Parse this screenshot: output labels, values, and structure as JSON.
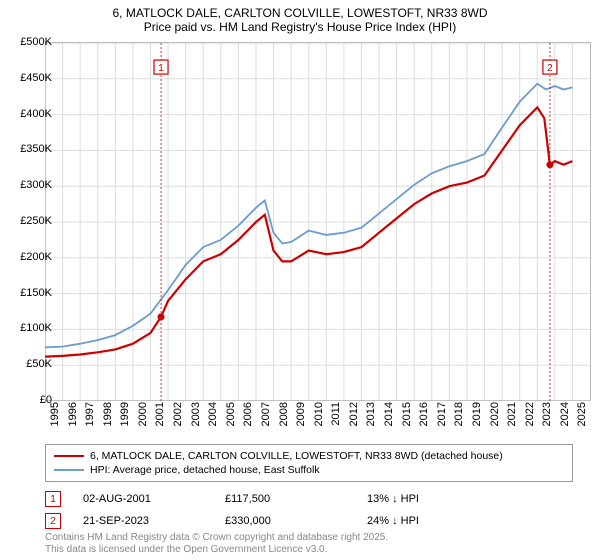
{
  "title_line1": "6, MATLOCK DALE, CARLTON COLVILLE, LOWESTOFT, NR33 8WD",
  "title_line2": "Price paid vs. HM Land Registry's House Price Index (HPI)",
  "chart": {
    "type": "line",
    "background_color": "#ffffff",
    "grid_color": "#dddddd",
    "x_start": 1995,
    "x_end": 2026,
    "x_ticks": [
      1995,
      1996,
      1997,
      1998,
      1999,
      2000,
      2001,
      2002,
      2003,
      2004,
      2005,
      2006,
      2007,
      2008,
      2009,
      2010,
      2011,
      2012,
      2013,
      2014,
      2015,
      2016,
      2017,
      2018,
      2019,
      2020,
      2021,
      2022,
      2023,
      2024,
      2025
    ],
    "y_min": 0,
    "y_max": 500000,
    "y_ticks": [
      0,
      50000,
      100000,
      150000,
      200000,
      250000,
      300000,
      350000,
      400000,
      450000,
      500000
    ],
    "y_labels": [
      "£0",
      "£50K",
      "£100K",
      "£150K",
      "£200K",
      "£250K",
      "£300K",
      "£350K",
      "£400K",
      "£450K",
      "£500K"
    ],
    "series": [
      {
        "name": "price_paid",
        "color": "#cc0000",
        "width": 2.2,
        "data": [
          [
            1995,
            62000
          ],
          [
            1996,
            63000
          ],
          [
            1997,
            65000
          ],
          [
            1998,
            68000
          ],
          [
            1999,
            72000
          ],
          [
            2000,
            80000
          ],
          [
            2001,
            95000
          ],
          [
            2001.6,
            117500
          ],
          [
            2002,
            140000
          ],
          [
            2003,
            170000
          ],
          [
            2004,
            195000
          ],
          [
            2005,
            205000
          ],
          [
            2006,
            225000
          ],
          [
            2007,
            250000
          ],
          [
            2007.5,
            260000
          ],
          [
            2008,
            210000
          ],
          [
            2008.5,
            195000
          ],
          [
            2009,
            195000
          ],
          [
            2010,
            210000
          ],
          [
            2011,
            205000
          ],
          [
            2012,
            208000
          ],
          [
            2013,
            215000
          ],
          [
            2014,
            235000
          ],
          [
            2015,
            255000
          ],
          [
            2016,
            275000
          ],
          [
            2017,
            290000
          ],
          [
            2018,
            300000
          ],
          [
            2019,
            305000
          ],
          [
            2020,
            315000
          ],
          [
            2021,
            350000
          ],
          [
            2022,
            385000
          ],
          [
            2023,
            410000
          ],
          [
            2023.4,
            395000
          ],
          [
            2023.72,
            330000
          ],
          [
            2024,
            335000
          ],
          [
            2024.5,
            330000
          ],
          [
            2025,
            335000
          ]
        ]
      },
      {
        "name": "hpi",
        "color": "#6b9bd1",
        "width": 1.8,
        "data": [
          [
            1995,
            75000
          ],
          [
            1996,
            76000
          ],
          [
            1997,
            80000
          ],
          [
            1998,
            85000
          ],
          [
            1999,
            92000
          ],
          [
            2000,
            105000
          ],
          [
            2001,
            122000
          ],
          [
            2002,
            155000
          ],
          [
            2003,
            190000
          ],
          [
            2004,
            215000
          ],
          [
            2005,
            225000
          ],
          [
            2006,
            245000
          ],
          [
            2007,
            270000
          ],
          [
            2007.5,
            280000
          ],
          [
            2008,
            235000
          ],
          [
            2008.5,
            220000
          ],
          [
            2009,
            222000
          ],
          [
            2010,
            238000
          ],
          [
            2011,
            232000
          ],
          [
            2012,
            235000
          ],
          [
            2013,
            242000
          ],
          [
            2014,
            262000
          ],
          [
            2015,
            282000
          ],
          [
            2016,
            302000
          ],
          [
            2017,
            318000
          ],
          [
            2018,
            328000
          ],
          [
            2019,
            335000
          ],
          [
            2020,
            345000
          ],
          [
            2021,
            382000
          ],
          [
            2022,
            418000
          ],
          [
            2023,
            443000
          ],
          [
            2023.5,
            435000
          ],
          [
            2024,
            440000
          ],
          [
            2024.5,
            435000
          ],
          [
            2025,
            438000
          ]
        ]
      }
    ],
    "markers": [
      {
        "n": "1",
        "x": 2001.6,
        "y": 117500,
        "label_y": 465000
      },
      {
        "n": "2",
        "x": 2023.72,
        "y": 330000,
        "label_y": 465000
      }
    ]
  },
  "legend": {
    "items": [
      {
        "color": "#cc0000",
        "label": "6, MATLOCK DALE, CARLTON COLVILLE, LOWESTOFT, NR33 8WD (detached house)"
      },
      {
        "color": "#6b9bd1",
        "label": "HPI: Average price, detached house, East Suffolk"
      }
    ]
  },
  "marker_table": [
    {
      "n": "1",
      "date": "02-AUG-2001",
      "price": "£117,500",
      "delta": "13% ↓ HPI"
    },
    {
      "n": "2",
      "date": "21-SEP-2023",
      "price": "£330,000",
      "delta": "24% ↓ HPI"
    }
  ],
  "footer_line1": "Contains HM Land Registry data © Crown copyright and database right 2025.",
  "footer_line2": "This data is licensed under the Open Government Licence v3.0.",
  "col_widths": {
    "date": 120,
    "price": 120,
    "delta": 120
  }
}
